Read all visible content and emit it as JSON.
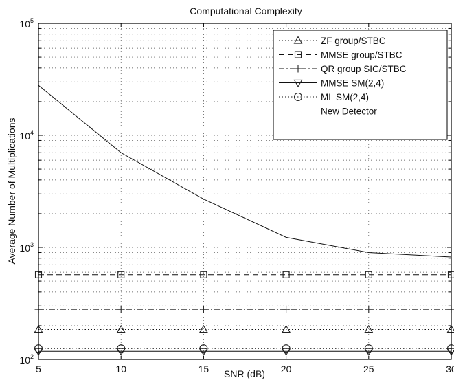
{
  "chart_data": {
    "type": "line",
    "title": "Computational Complexity",
    "xlabel": "SNR (dB)",
    "ylabel": "Average Number of Multiplications",
    "x": [
      5,
      10,
      15,
      20,
      25,
      30
    ],
    "xticks": [
      5,
      10,
      15,
      20,
      25,
      30
    ],
    "xlim": [
      5,
      30
    ],
    "ylim": [
      100,
      100000
    ],
    "yscale": "log",
    "ytick_base": "10",
    "ytick_exponents": [
      "2",
      "3",
      "4",
      "5"
    ],
    "grid": true,
    "legend_position": "top-right",
    "series": [
      {
        "name": "ZF group/STBC",
        "marker": "triangle-up",
        "dash": "1.5 3",
        "values": [
          185,
          185,
          185,
          185,
          185,
          185
        ]
      },
      {
        "name": "MMSE group/STBC",
        "marker": "square",
        "dash": "8 5",
        "values": [
          570,
          570,
          570,
          570,
          570,
          570
        ]
      },
      {
        "name": "QR group SIC/STBC",
        "marker": "plus",
        "dash": "8 3 2 3",
        "values": [
          280,
          280,
          280,
          280,
          280,
          280
        ]
      },
      {
        "name": "MMSE SM(2,4)",
        "marker": "triangle-down",
        "dash": "",
        "values": [
          118,
          118,
          118,
          118,
          118,
          118
        ]
      },
      {
        "name": "ML SM(2,4)",
        "marker": "circle",
        "dash": "1.5 3",
        "values": [
          125,
          125,
          125,
          125,
          125,
          125
        ]
      },
      {
        "name": "New Detector",
        "marker": "none",
        "dash": "",
        "values": [
          28000,
          7000,
          2700,
          1230,
          900,
          820
        ]
      }
    ]
  }
}
